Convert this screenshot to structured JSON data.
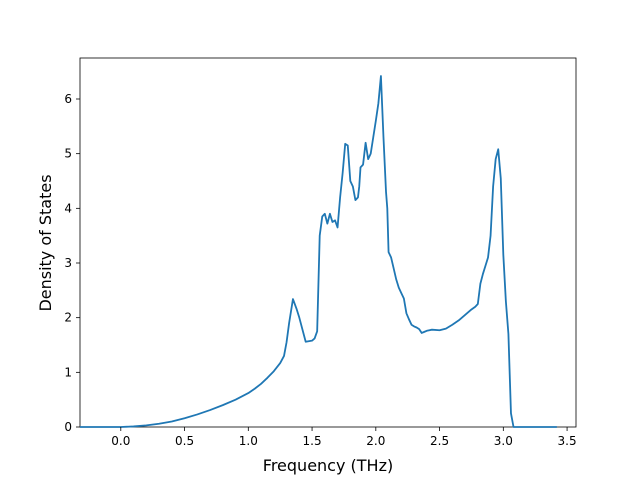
{
  "chart_data": {
    "type": "line",
    "xlabel": "Frequency (THz)",
    "ylabel": "Density of States",
    "xlim": [
      -0.32,
      3.57
    ],
    "ylim": [
      0,
      6.75
    ],
    "x_ticks": [
      0.0,
      0.5,
      1.0,
      1.5,
      2.0,
      2.5,
      3.0,
      3.5
    ],
    "x_tick_labels": [
      "0.0",
      "0.5",
      "1.0",
      "1.5",
      "2.0",
      "2.5",
      "3.0",
      "3.5"
    ],
    "y_ticks": [
      0,
      1,
      2,
      3,
      4,
      5,
      6
    ],
    "y_tick_labels": [
      "0",
      "1",
      "2",
      "3",
      "4",
      "5",
      "6"
    ],
    "grid": false,
    "series": [
      {
        "color": "#1f77b4",
        "x": [
          -0.32,
          0.0,
          0.1,
          0.2,
          0.3,
          0.4,
          0.5,
          0.6,
          0.7,
          0.8,
          0.9,
          1.0,
          1.05,
          1.1,
          1.15,
          1.2,
          1.25,
          1.28,
          1.3,
          1.32,
          1.35,
          1.38,
          1.4,
          1.45,
          1.5,
          1.52,
          1.54,
          1.56,
          1.58,
          1.6,
          1.62,
          1.64,
          1.66,
          1.68,
          1.7,
          1.72,
          1.74,
          1.76,
          1.78,
          1.8,
          1.82,
          1.84,
          1.86,
          1.87,
          1.88,
          1.9,
          1.92,
          1.94,
          1.96,
          1.98,
          2.0,
          2.02,
          2.04,
          2.06,
          2.08,
          2.09,
          2.1,
          2.12,
          2.14,
          2.16,
          2.18,
          2.2,
          2.22,
          2.24,
          2.26,
          2.28,
          2.3,
          2.32,
          2.34,
          2.36,
          2.38,
          2.4,
          2.42,
          2.44,
          2.5,
          2.55,
          2.6,
          2.65,
          2.7,
          2.75,
          2.78,
          2.8,
          2.82,
          2.84,
          2.86,
          2.88,
          2.9,
          2.92,
          2.94,
          2.96,
          2.98,
          3.0,
          3.02,
          3.04,
          3.06,
          3.08,
          3.1,
          3.12,
          3.2,
          3.3,
          3.42
        ],
        "y": [
          0.0,
          0.0,
          0.01,
          0.03,
          0.06,
          0.1,
          0.16,
          0.23,
          0.31,
          0.4,
          0.5,
          0.62,
          0.7,
          0.79,
          0.9,
          1.02,
          1.17,
          1.3,
          1.55,
          1.9,
          2.34,
          2.15,
          2.0,
          1.56,
          1.58,
          1.62,
          1.75,
          3.5,
          3.85,
          3.9,
          3.72,
          3.9,
          3.75,
          3.78,
          3.65,
          4.2,
          4.65,
          5.18,
          5.15,
          4.5,
          4.4,
          4.15,
          4.2,
          4.4,
          4.75,
          4.8,
          5.2,
          4.9,
          5.0,
          5.3,
          5.6,
          5.92,
          6.42,
          5.3,
          4.3,
          4.0,
          3.2,
          3.1,
          2.9,
          2.7,
          2.55,
          2.45,
          2.35,
          2.08,
          1.97,
          1.87,
          1.84,
          1.82,
          1.79,
          1.72,
          1.74,
          1.76,
          1.77,
          1.78,
          1.77,
          1.8,
          1.87,
          1.95,
          2.05,
          2.15,
          2.2,
          2.25,
          2.62,
          2.8,
          2.95,
          3.1,
          3.5,
          4.4,
          4.9,
          5.08,
          4.55,
          3.15,
          2.3,
          1.7,
          0.25,
          0.0,
          0.0,
          0.0,
          0.0,
          0.0,
          0.0
        ]
      }
    ]
  }
}
